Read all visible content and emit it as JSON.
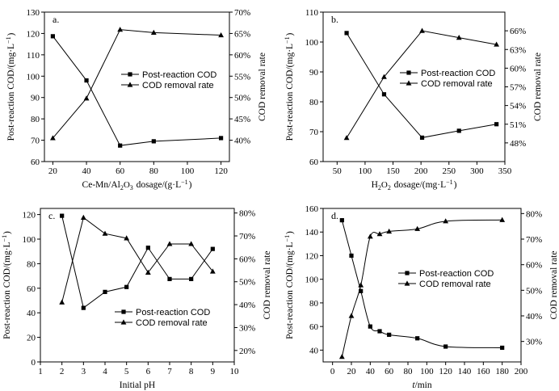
{
  "chart_data": [
    {
      "panel": "a.",
      "type": "line",
      "xlabel": "Ce-Mn/Al2O3 dosage/(g·L−1)",
      "ylabel_left": "Post-reaction COD/(mg·L−1)",
      "ylabel_right": "COD removal rate",
      "xlim": [
        15,
        125
      ],
      "xticks": [
        20,
        40,
        60,
        80,
        100,
        120
      ],
      "ylim_left": [
        60,
        130
      ],
      "yticks_left": [
        60,
        70,
        80,
        90,
        100,
        110,
        120,
        130
      ],
      "ylim_right": [
        35,
        70
      ],
      "yticks_right": [
        40,
        45,
        50,
        55,
        60,
        65,
        70
      ],
      "series": [
        {
          "name": "Post-reaction COD",
          "axis": "left",
          "marker": "square",
          "x": [
            20,
            40,
            60,
            80,
            120
          ],
          "y": [
            118.7,
            98,
            67.5,
            69.5,
            71
          ]
        },
        {
          "name": "COD removal rate",
          "axis": "right",
          "marker": "triangle",
          "x": [
            20,
            40,
            60,
            80,
            120
          ],
          "y": [
            40.5,
            49.8,
            65.9,
            65.2,
            64.6
          ]
        }
      ],
      "legend": [
        "Post-reaction COD",
        "COD removal rate"
      ]
    },
    {
      "panel": "b.",
      "type": "line",
      "xlabel": "H2O2 dosage/(mg·L−1)",
      "ylabel_left": "Post-reaction COD/(mg·L−1)",
      "ylabel_right": "COD removal rate",
      "xlim": [
        25,
        350
      ],
      "xticks": [
        50,
        100,
        150,
        200,
        250,
        300,
        350
      ],
      "ylim_left": [
        60,
        110
      ],
      "yticks_left": [
        60,
        70,
        80,
        90,
        100,
        110
      ],
      "ylim_right": [
        45,
        69
      ],
      "yticks_right": [
        48,
        51,
        54,
        57,
        60,
        63,
        66
      ],
      "series": [
        {
          "name": "Post-reaction COD",
          "axis": "left",
          "marker": "square",
          "x": [
            67,
            134,
            202,
            268,
            335
          ],
          "y": [
            103,
            82.5,
            68,
            70.3,
            72.5
          ]
        },
        {
          "name": "COD removal rate",
          "axis": "right",
          "marker": "triangle",
          "x": [
            67,
            134,
            202,
            268,
            335
          ],
          "y": [
            48.8,
            58.6,
            66,
            64.9,
            63.8
          ]
        }
      ],
      "legend": [
        "Post-reaction COD",
        "COD removal rate"
      ]
    },
    {
      "panel": "c.",
      "type": "line",
      "xlabel": "Initial pH",
      "ylabel_left": "Post-reaction COD/(mg·L−1)",
      "ylabel_right": "COD removal rate",
      "xlim": [
        1,
        10
      ],
      "xticks": [
        1,
        2,
        3,
        4,
        5,
        6,
        7,
        8,
        9,
        10
      ],
      "ylim_left": [
        0,
        125
      ],
      "yticks_left": [
        0,
        20,
        40,
        60,
        80,
        100,
        120
      ],
      "ylim_right": [
        15,
        82
      ],
      "yticks_right": [
        20,
        30,
        40,
        50,
        60,
        70,
        80
      ],
      "series": [
        {
          "name": "Post-reaction COD",
          "axis": "left",
          "marker": "square",
          "x": [
            2,
            3,
            4,
            5,
            6,
            7,
            8,
            9
          ],
          "y": [
            119,
            44,
            57,
            61,
            93,
            67.5,
            67.5,
            92
          ]
        },
        {
          "name": "COD removal rate",
          "axis": "right",
          "marker": "triangle",
          "x": [
            2,
            3,
            4,
            5,
            6,
            7,
            8,
            9
          ],
          "y": [
            41,
            78,
            71,
            69,
            54,
            66.5,
            66.5,
            54.5
          ]
        }
      ],
      "legend": [
        "Post-reaction COD",
        "COD removal rate"
      ]
    },
    {
      "panel": "d.",
      "type": "line",
      "xlabel": "t/min",
      "ylabel_left": "Post-reaction COD/(mg·L−1)",
      "ylabel_right": "COD removal rate",
      "xlim": [
        -10,
        200
      ],
      "xticks": [
        0,
        20,
        40,
        60,
        80,
        100,
        120,
        140,
        160,
        180,
        200
      ],
      "ylim_left": [
        30,
        160
      ],
      "yticks_left": [
        40,
        60,
        80,
        100,
        120,
        140,
        160
      ],
      "ylim_right": [
        22,
        82
      ],
      "yticks_right": [
        30,
        40,
        50,
        60,
        70,
        80
      ],
      "series": [
        {
          "name": "Post-reaction COD",
          "axis": "left",
          "marker": "square",
          "x": [
            10,
            20,
            30,
            40,
            50,
            60,
            90,
            120,
            180
          ],
          "y": [
            150,
            120,
            90,
            60,
            56,
            53,
            50,
            43,
            42
          ]
        },
        {
          "name": "COD removal rate",
          "axis": "right",
          "marker": "triangle",
          "x": [
            10,
            20,
            30,
            40,
            50,
            60,
            90,
            120,
            180
          ],
          "y": [
            24,
            40,
            52,
            71,
            72,
            73,
            74,
            77,
            77.5
          ]
        }
      ],
      "legend": [
        "Post-reaction COD",
        "COD removal rate"
      ]
    }
  ]
}
